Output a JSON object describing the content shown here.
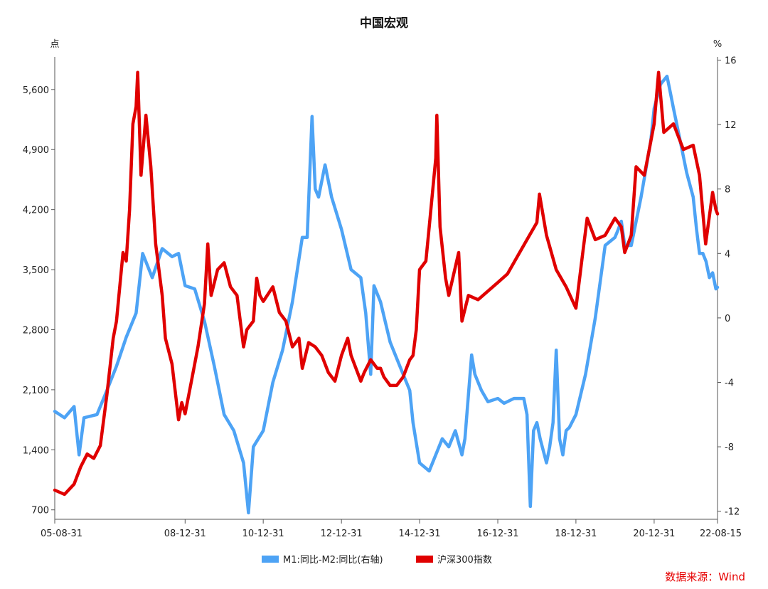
{
  "chart_data": {
    "type": "line",
    "title": "中国宏观",
    "left_unit": "点",
    "right_unit": "%",
    "source": "数据来源：Wind",
    "left_axis": {
      "ticks": [
        "700",
        "1,400",
        "2,100",
        "2,800",
        "3,500",
        "4,200",
        "4,900",
        "5,600"
      ],
      "ylim": [
        590,
        5980
      ]
    },
    "right_axis": {
      "ticks": [
        "-12",
        "-8",
        "-4",
        "0",
        "4",
        "8",
        "12",
        "16"
      ],
      "ylim": [
        -12.5,
        16.2
      ]
    },
    "x_ticks": [
      "05-08-31",
      "08-12-31",
      "10-12-31",
      "12-12-31",
      "14-12-31",
      "16-12-31",
      "18-12-31",
      "20-12-31",
      "22-08-15"
    ],
    "xlim": [
      "2005-08-31",
      "2022-08-15"
    ],
    "grid": false,
    "legend_position": "bottom",
    "series": [
      {
        "name": "M1:同比-M2:同比(右轴)",
        "axis": "right",
        "color": "#4da3f5",
        "points": [
          [
            "2005-08-31",
            -5.8
          ],
          [
            "2005-11-30",
            -6.2
          ],
          [
            "2006-02-28",
            -5.5
          ],
          [
            "2006-04-15",
            -8.5
          ],
          [
            "2006-05-31",
            -6.2
          ],
          [
            "2006-09-30",
            -6.0
          ],
          [
            "2006-12-31",
            -4.5
          ],
          [
            "2007-03-31",
            -3.0
          ],
          [
            "2007-06-30",
            -1.2
          ],
          [
            "2007-09-30",
            0.3
          ],
          [
            "2007-11-30",
            4.0
          ],
          [
            "2008-02-28",
            2.5
          ],
          [
            "2008-05-31",
            4.3
          ],
          [
            "2008-08-31",
            3.8
          ],
          [
            "2008-10-31",
            4.0
          ],
          [
            "2008-12-31",
            2.0
          ],
          [
            "2009-03-31",
            1.8
          ],
          [
            "2009-06-30",
            -0.2
          ],
          [
            "2009-09-30",
            -3.0
          ],
          [
            "2009-12-31",
            -6.0
          ],
          [
            "2010-03-31",
            -7.0
          ],
          [
            "2010-06-30",
            -9.0
          ],
          [
            "2010-08-15",
            -12.1
          ],
          [
            "2010-09-30",
            -8.0
          ],
          [
            "2010-12-31",
            -7.0
          ],
          [
            "2011-03-31",
            -4.0
          ],
          [
            "2011-06-30",
            -2.0
          ],
          [
            "2011-09-30",
            1.0
          ],
          [
            "2011-12-31",
            5.0
          ],
          [
            "2012-02-15",
            5.0
          ],
          [
            "2012-03-31",
            12.5
          ],
          [
            "2012-04-30",
            8.0
          ],
          [
            "2012-05-31",
            7.5
          ],
          [
            "2012-07-31",
            9.5
          ],
          [
            "2012-09-30",
            7.5
          ],
          [
            "2012-12-31",
            5.5
          ],
          [
            "2013-03-31",
            3.0
          ],
          [
            "2013-06-30",
            2.5
          ],
          [
            "2013-08-15",
            0.3
          ],
          [
            "2013-09-30",
            -3.5
          ],
          [
            "2013-10-31",
            2.0
          ],
          [
            "2013-12-31",
            1.0
          ],
          [
            "2014-03-31",
            -1.5
          ],
          [
            "2014-06-30",
            -3.0
          ],
          [
            "2014-09-30",
            -4.5
          ],
          [
            "2014-10-31",
            -6.5
          ],
          [
            "2014-12-31",
            -9.0
          ],
          [
            "2015-03-31",
            -9.5
          ],
          [
            "2015-05-31",
            -8.5
          ],
          [
            "2015-07-31",
            -7.5
          ],
          [
            "2015-09-30",
            -8.0
          ],
          [
            "2015-11-30",
            -7.0
          ],
          [
            "2016-01-31",
            -8.5
          ],
          [
            "2016-02-28",
            -7.5
          ],
          [
            "2016-04-30",
            -2.3
          ],
          [
            "2016-05-31",
            -3.5
          ],
          [
            "2016-07-31",
            -4.5
          ],
          [
            "2016-09-30",
            -5.2
          ],
          [
            "2016-12-31",
            -5.0
          ],
          [
            "2017-02-28",
            -5.3
          ],
          [
            "2017-05-31",
            -5.0
          ],
          [
            "2017-08-31",
            -5.0
          ],
          [
            "2017-09-30",
            -6.0
          ],
          [
            "2017-10-31",
            -11.7
          ],
          [
            "2017-11-30",
            -7.0
          ],
          [
            "2017-12-31",
            -6.5
          ],
          [
            "2018-01-31",
            -7.5
          ],
          [
            "2018-03-31",
            -9.0
          ],
          [
            "2018-04-30",
            -8.0
          ],
          [
            "2018-05-31",
            -6.5
          ],
          [
            "2018-06-30",
            -2.0
          ],
          [
            "2018-07-31",
            -7.5
          ],
          [
            "2018-08-31",
            -8.5
          ],
          [
            "2018-09-30",
            -7.0
          ],
          [
            "2018-10-31",
            -6.8
          ],
          [
            "2018-12-31",
            -6.0
          ],
          [
            "2019-03-31",
            -3.5
          ],
          [
            "2019-06-30",
            0.0
          ],
          [
            "2019-09-30",
            4.5
          ],
          [
            "2019-12-31",
            5.0
          ],
          [
            "2020-01-31",
            5.5
          ],
          [
            "2020-02-28",
            6.0
          ],
          [
            "2020-03-31",
            4.5
          ],
          [
            "2020-05-31",
            4.5
          ],
          [
            "2020-08-31",
            7.5
          ],
          [
            "2020-11-30",
            11.0
          ],
          [
            "2020-12-31",
            13.0
          ],
          [
            "2021-02-28",
            14.5
          ],
          [
            "2021-04-30",
            15.0
          ],
          [
            "2021-05-31",
            14.0
          ],
          [
            "2021-06-30",
            13.0
          ],
          [
            "2021-08-31",
            11.0
          ],
          [
            "2021-10-31",
            9.0
          ],
          [
            "2021-12-31",
            7.5
          ],
          [
            "2022-01-31",
            5.5
          ],
          [
            "2022-02-28",
            4.0
          ],
          [
            "2022-03-31",
            4.0
          ],
          [
            "2022-04-30",
            3.5
          ],
          [
            "2022-05-31",
            2.5
          ],
          [
            "2022-06-30",
            2.8
          ],
          [
            "2022-07-31",
            1.8
          ],
          [
            "2022-08-15",
            1.9
          ]
        ]
      },
      {
        "name": "沪深300指数",
        "axis": "left",
        "color": "#e00000",
        "points": [
          [
            "2005-08-31",
            930
          ],
          [
            "2005-11-30",
            880
          ],
          [
            "2006-02-28",
            1000
          ],
          [
            "2006-04-30",
            1200
          ],
          [
            "2006-06-30",
            1350
          ],
          [
            "2006-08-31",
            1300
          ],
          [
            "2006-10-31",
            1450
          ],
          [
            "2006-12-31",
            2040
          ],
          [
            "2007-02-28",
            2700
          ],
          [
            "2007-03-31",
            2900
          ],
          [
            "2007-05-31",
            3700
          ],
          [
            "2007-06-30",
            3600
          ],
          [
            "2007-07-31",
            4200
          ],
          [
            "2007-08-31",
            5200
          ],
          [
            "2007-09-30",
            5400
          ],
          [
            "2007-10-15",
            5800
          ],
          [
            "2007-11-15",
            4600
          ],
          [
            "2007-12-31",
            5300
          ],
          [
            "2008-02-15",
            4700
          ],
          [
            "2008-03-31",
            3800
          ],
          [
            "2008-05-31",
            3200
          ],
          [
            "2008-06-30",
            2700
          ],
          [
            "2008-08-31",
            2400
          ],
          [
            "2008-10-31",
            1750
          ],
          [
            "2008-11-30",
            1950
          ],
          [
            "2008-12-31",
            1820
          ],
          [
            "2009-02-28",
            2200
          ],
          [
            "2009-04-30",
            2600
          ],
          [
            "2009-06-30",
            3100
          ],
          [
            "2009-07-31",
            3800
          ],
          [
            "2009-08-31",
            3200
          ],
          [
            "2009-10-31",
            3500
          ],
          [
            "2009-12-31",
            3580
          ],
          [
            "2010-02-28",
            3300
          ],
          [
            "2010-04-30",
            3200
          ],
          [
            "2010-06-30",
            2600
          ],
          [
            "2010-07-31",
            2800
          ],
          [
            "2010-09-30",
            2900
          ],
          [
            "2010-10-31",
            3400
          ],
          [
            "2010-11-30",
            3200
          ],
          [
            "2010-12-31",
            3130
          ],
          [
            "2011-03-31",
            3300
          ],
          [
            "2011-05-31",
            3000
          ],
          [
            "2011-07-31",
            2900
          ],
          [
            "2011-09-30",
            2600
          ],
          [
            "2011-11-30",
            2700
          ],
          [
            "2011-12-31",
            2350
          ],
          [
            "2012-02-28",
            2650
          ],
          [
            "2012-04-30",
            2600
          ],
          [
            "2012-06-30",
            2500
          ],
          [
            "2012-08-31",
            2300
          ],
          [
            "2012-10-31",
            2200
          ],
          [
            "2012-12-31",
            2500
          ],
          [
            "2013-02-28",
            2700
          ],
          [
            "2013-03-31",
            2500
          ],
          [
            "2013-06-30",
            2200
          ],
          [
            "2013-07-31",
            2300
          ],
          [
            "2013-09-30",
            2450
          ],
          [
            "2013-11-30",
            2350
          ],
          [
            "2013-12-31",
            2350
          ],
          [
            "2014-01-31",
            2250
          ],
          [
            "2014-03-31",
            2150
          ],
          [
            "2014-05-31",
            2150
          ],
          [
            "2014-07-31",
            2250
          ],
          [
            "2014-09-30",
            2450
          ],
          [
            "2014-10-31",
            2500
          ],
          [
            "2014-11-30",
            2800
          ],
          [
            "2014-12-31",
            3500
          ],
          [
            "2015-02-28",
            3600
          ],
          [
            "2015-03-31",
            4000
          ],
          [
            "2015-05-31",
            4800
          ],
          [
            "2015-06-10",
            5300
          ],
          [
            "2015-07-10",
            4000
          ],
          [
            "2015-08-31",
            3400
          ],
          [
            "2015-09-30",
            3200
          ],
          [
            "2015-12-31",
            3700
          ],
          [
            "2016-01-31",
            2900
          ],
          [
            "2016-03-31",
            3200
          ],
          [
            "2016-06-30",
            3150
          ],
          [
            "2016-09-30",
            3250
          ],
          [
            "2016-12-31",
            3350
          ],
          [
            "2017-03-31",
            3450
          ],
          [
            "2017-06-30",
            3650
          ],
          [
            "2017-09-30",
            3850
          ],
          [
            "2017-12-31",
            4050
          ],
          [
            "2018-01-24",
            4380
          ],
          [
            "2018-03-31",
            3900
          ],
          [
            "2018-06-30",
            3500
          ],
          [
            "2018-09-30",
            3300
          ],
          [
            "2018-12-31",
            3050
          ],
          [
            "2019-02-28",
            3650
          ],
          [
            "2019-04-15",
            4100
          ],
          [
            "2019-06-30",
            3850
          ],
          [
            "2019-09-30",
            3900
          ],
          [
            "2019-12-31",
            4100
          ],
          [
            "2020-02-28",
            4000
          ],
          [
            "2020-03-31",
            3700
          ],
          [
            "2020-05-31",
            3900
          ],
          [
            "2020-07-15",
            4700
          ],
          [
            "2020-09-30",
            4600
          ],
          [
            "2020-12-31",
            5200
          ],
          [
            "2021-02-10",
            5800
          ],
          [
            "2021-03-31",
            5100
          ],
          [
            "2021-06-30",
            5200
          ],
          [
            "2021-09-30",
            4900
          ],
          [
            "2021-12-31",
            4950
          ],
          [
            "2022-02-28",
            4600
          ],
          [
            "2022-04-26",
            3800
          ],
          [
            "2022-06-30",
            4400
          ],
          [
            "2022-07-31",
            4200
          ],
          [
            "2022-08-15",
            4150
          ]
        ]
      }
    ]
  }
}
